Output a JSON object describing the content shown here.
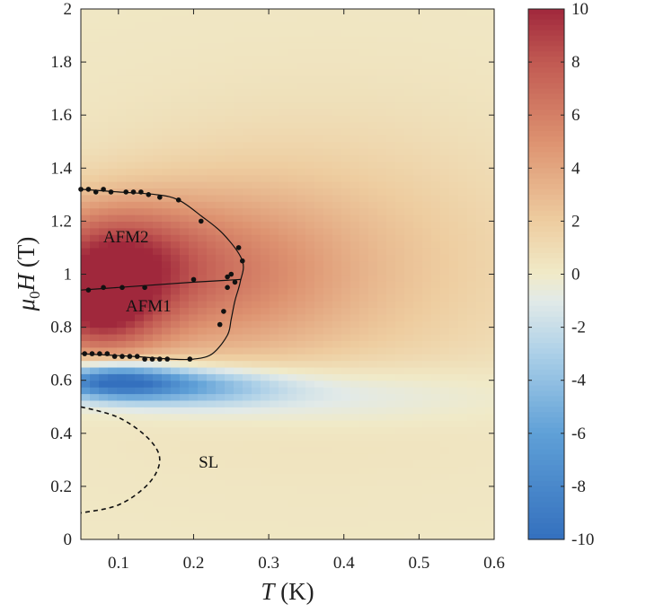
{
  "chart_data": {
    "type": "heatmap",
    "xlabel": "T (K)",
    "xlabel_parts": {
      "var": "T",
      "unit": "(K)"
    },
    "ylabel": "μ0H (T)",
    "ylabel_parts": {
      "var": "μ",
      "sub": "0",
      "var2": "H",
      "unit": "(T)"
    },
    "xlim": [
      0.05,
      0.6
    ],
    "ylim": [
      0,
      2
    ],
    "x_ticks": [
      "0.1",
      "0.2",
      "0.3",
      "0.4",
      "0.5",
      "0.6"
    ],
    "y_ticks": [
      "0",
      "0.2",
      "0.4",
      "0.6",
      "0.8",
      "1",
      "1.2",
      "1.4",
      "1.6",
      "1.8",
      "2"
    ],
    "colorbar": {
      "range": [
        -10,
        10
      ],
      "ticks": [
        "10",
        "8",
        "6",
        "4",
        "2",
        "0",
        "-2",
        "-4",
        "-6",
        "-8",
        "-10"
      ]
    },
    "region_labels": [
      {
        "text": "AFM2",
        "x": 0.11,
        "y": 1.12
      },
      {
        "text": "AFM1",
        "x": 0.14,
        "y": 0.86
      },
      {
        "text": "SL",
        "x": 0.22,
        "y": 0.27
      }
    ],
    "phase_points": [
      {
        "x": 0.05,
        "y": 1.32
      },
      {
        "x": 0.06,
        "y": 1.32
      },
      {
        "x": 0.07,
        "y": 1.31
      },
      {
        "x": 0.08,
        "y": 1.32
      },
      {
        "x": 0.09,
        "y": 1.31
      },
      {
        "x": 0.11,
        "y": 1.31
      },
      {
        "x": 0.12,
        "y": 1.31
      },
      {
        "x": 0.13,
        "y": 1.31
      },
      {
        "x": 0.14,
        "y": 1.3
      },
      {
        "x": 0.155,
        "y": 1.29
      },
      {
        "x": 0.18,
        "y": 1.28
      },
      {
        "x": 0.21,
        "y": 1.2
      },
      {
        "x": 0.26,
        "y": 1.1
      },
      {
        "x": 0.265,
        "y": 1.05
      },
      {
        "x": 0.25,
        "y": 1.0
      },
      {
        "x": 0.245,
        "y": 0.99
      },
      {
        "x": 0.255,
        "y": 0.97
      },
      {
        "x": 0.245,
        "y": 0.95
      },
      {
        "x": 0.24,
        "y": 0.86
      },
      {
        "x": 0.235,
        "y": 0.81
      },
      {
        "x": 0.195,
        "y": 0.68
      },
      {
        "x": 0.06,
        "y": 0.94
      },
      {
        "x": 0.08,
        "y": 0.95
      },
      {
        "x": 0.105,
        "y": 0.95
      },
      {
        "x": 0.135,
        "y": 0.95
      },
      {
        "x": 0.2,
        "y": 0.98
      },
      {
        "x": 0.055,
        "y": 0.7
      },
      {
        "x": 0.065,
        "y": 0.7
      },
      {
        "x": 0.075,
        "y": 0.7
      },
      {
        "x": 0.085,
        "y": 0.7
      },
      {
        "x": 0.095,
        "y": 0.69
      },
      {
        "x": 0.105,
        "y": 0.69
      },
      {
        "x": 0.115,
        "y": 0.69
      },
      {
        "x": 0.125,
        "y": 0.69
      },
      {
        "x": 0.135,
        "y": 0.68
      },
      {
        "x": 0.145,
        "y": 0.68
      },
      {
        "x": 0.155,
        "y": 0.68
      },
      {
        "x": 0.165,
        "y": 0.68
      }
    ],
    "boundary_outer": [
      [
        0.05,
        1.32
      ],
      [
        0.1,
        1.31
      ],
      [
        0.15,
        1.3
      ],
      [
        0.18,
        1.28
      ],
      [
        0.21,
        1.22
      ],
      [
        0.24,
        1.15
      ],
      [
        0.265,
        1.05
      ],
      [
        0.262,
        0.97
      ],
      [
        0.255,
        0.9
      ],
      [
        0.25,
        0.83
      ],
      [
        0.245,
        0.77
      ],
      [
        0.225,
        0.7
      ],
      [
        0.2,
        0.68
      ],
      [
        0.17,
        0.68
      ],
      [
        0.12,
        0.69
      ],
      [
        0.05,
        0.7
      ]
    ],
    "boundary_inner": [
      [
        0.05,
        0.94
      ],
      [
        0.1,
        0.95
      ],
      [
        0.15,
        0.96
      ],
      [
        0.2,
        0.97
      ],
      [
        0.263,
        0.98
      ]
    ],
    "boundary_sl": [
      [
        0.05,
        0.5
      ],
      [
        0.1,
        0.46
      ],
      [
        0.14,
        0.38
      ],
      [
        0.155,
        0.3
      ],
      [
        0.14,
        0.21
      ],
      [
        0.1,
        0.13
      ],
      [
        0.05,
        0.1
      ]
    ],
    "field_description": [
      {
        "x": 0.09,
        "y": 0.6,
        "value": -9,
        "sx": 0.06,
        "sy": 0.045
      },
      {
        "x": 0.19,
        "y": 0.58,
        "value": -5,
        "sx": 0.09,
        "sy": 0.05
      },
      {
        "x": 0.35,
        "y": 0.55,
        "value": -2,
        "sx": 0.18,
        "sy": 0.08
      },
      {
        "x": 0.08,
        "y": 1.05,
        "value": 7.5,
        "sx": 0.08,
        "sy": 0.15
      },
      {
        "x": 0.07,
        "y": 0.83,
        "value": 6,
        "sx": 0.06,
        "sy": 0.11
      },
      {
        "x": 0.22,
        "y": 1.0,
        "value": 4,
        "sx": 0.12,
        "sy": 0.22
      },
      {
        "x": 0.38,
        "y": 1.05,
        "value": 2.3,
        "sx": 0.2,
        "sy": 0.35
      }
    ],
    "grid": false,
    "legend": "none"
  }
}
